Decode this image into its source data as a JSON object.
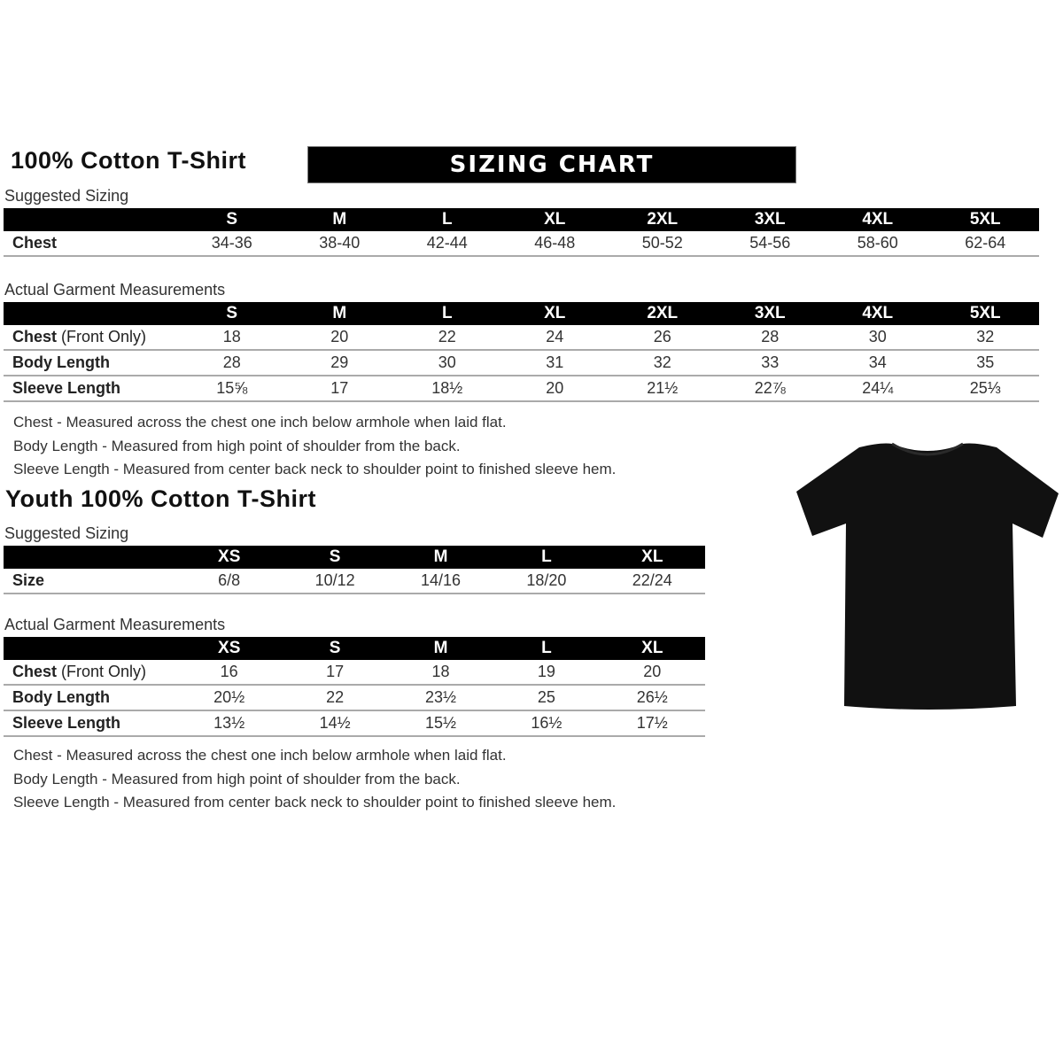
{
  "adult": {
    "title": "100% Cotton T-Shirt",
    "banner": "SIZING CHART",
    "suggested": {
      "label": "Suggested Sizing",
      "sizes": [
        "S",
        "M",
        "L",
        "XL",
        "2XL",
        "3XL",
        "4XL",
        "5XL"
      ],
      "rows": [
        {
          "label": "Chest",
          "label_extra": "",
          "values": [
            "34-36",
            "38-40",
            "42-44",
            "46-48",
            "50-52",
            "54-56",
            "58-60",
            "62-64"
          ]
        }
      ]
    },
    "actual": {
      "label": "Actual Garment Measurements",
      "sizes": [
        "S",
        "M",
        "L",
        "XL",
        "2XL",
        "3XL",
        "4XL",
        "5XL"
      ],
      "rows": [
        {
          "label": "Chest",
          "label_extra": " (Front Only)",
          "values": [
            "18",
            "20",
            "22",
            "24",
            "26",
            "28",
            "30",
            "32"
          ]
        },
        {
          "label": "Body Length",
          "label_extra": "",
          "values": [
            "28",
            "29",
            "30",
            "31",
            "32",
            "33",
            "34",
            "35"
          ]
        },
        {
          "label": "Sleeve Length",
          "label_extra": "",
          "values": [
            "15⅝",
            "17",
            "18½",
            "20",
            "21½",
            "22⅞",
            "24¼",
            "25⅓"
          ]
        }
      ]
    },
    "notes": [
      "Chest - Measured across the chest one inch below armhole when laid flat.",
      "Body Length - Measured from high point of shoulder from the back.",
      "Sleeve Length - Measured from center back neck to shoulder point to finished sleeve hem."
    ]
  },
  "youth": {
    "title": "Youth 100% Cotton T-Shirt",
    "suggested": {
      "label": "Suggested Sizing",
      "sizes": [
        "XS",
        "S",
        "M",
        "L",
        "XL"
      ],
      "rows": [
        {
          "label": "Size",
          "label_extra": "",
          "values": [
            "6/8",
            "10/12",
            "14/16",
            "18/20",
            "22/24"
          ]
        }
      ]
    },
    "actual": {
      "label": "Actual Garment Measurements",
      "sizes": [
        "XS",
        "S",
        "M",
        "L",
        "XL"
      ],
      "rows": [
        {
          "label": "Chest",
          "label_extra": " (Front Only)",
          "values": [
            "16",
            "17",
            "18",
            "19",
            "20"
          ]
        },
        {
          "label": "Body Length",
          "label_extra": "",
          "values": [
            "20½",
            "22",
            "23½",
            "25",
            "26½"
          ]
        },
        {
          "label": "Sleeve Length",
          "label_extra": "",
          "values": [
            "13½",
            "14½",
            "15½",
            "16½",
            "17½"
          ]
        }
      ]
    },
    "notes": [
      "Chest - Measured across the chest one inch below armhole when laid flat.",
      "Body Length - Measured from high point of shoulder from the back.",
      "Sleeve Length - Measured from center back neck to shoulder point to finished sleeve hem."
    ]
  },
  "image": {
    "icon": "tshirt-icon",
    "color": "#111111"
  }
}
